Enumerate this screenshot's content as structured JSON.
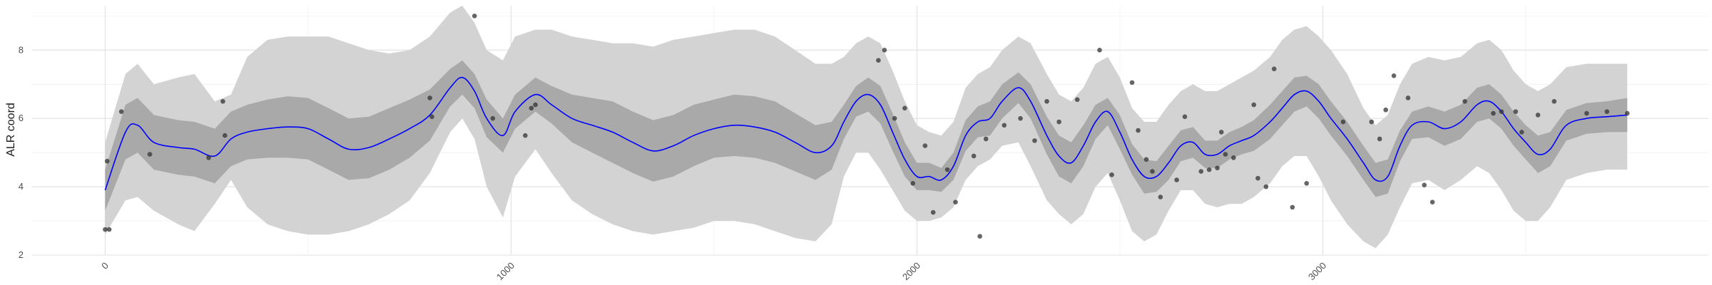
{
  "chart_data": {
    "type": "line",
    "title": "",
    "xlabel": "",
    "ylabel": "ALR coord",
    "xlim": [
      -180,
      3950
    ],
    "ylim": [
      2,
      9.3
    ],
    "x_ticks": [
      0,
      1000,
      2000,
      3000
    ],
    "x_tick_labels": [
      "0",
      "1000",
      "2000",
      "3000"
    ],
    "y_ticks": [
      2,
      4,
      6,
      8
    ],
    "y_tick_labels": [
      "2",
      "4",
      "6",
      "8"
    ],
    "grid": true,
    "legend": "none",
    "colors": {
      "mean_line": "#0000ff",
      "inner_band": "#a9a9a9",
      "outer_band": "#d3d3d3",
      "points": "#333333",
      "grid": "#ebebeb"
    },
    "series": [
      {
        "kind": "mean",
        "x": [
          0,
          50,
          80,
          120,
          180,
          220,
          270,
          310,
          350,
          400,
          450,
          500,
          550,
          600,
          650,
          700,
          750,
          800,
          850,
          880,
          910,
          940,
          980,
          1010,
          1060,
          1100,
          1150,
          1200,
          1250,
          1300,
          1350,
          1400,
          1450,
          1500,
          1550,
          1600,
          1650,
          1700,
          1750,
          1790,
          1820,
          1850,
          1880,
          1910,
          1940,
          1970,
          2000,
          2030,
          2060,
          2090,
          2120,
          2150,
          2180,
          2210,
          2250,
          2280,
          2320,
          2350,
          2380,
          2410,
          2440,
          2470,
          2500,
          2530,
          2560,
          2590,
          2620,
          2650,
          2680,
          2710,
          2740,
          2770,
          2800,
          2830,
          2870,
          2900,
          2930,
          2960,
          2990,
          3020,
          3060,
          3100,
          3130,
          3160,
          3190,
          3220,
          3260,
          3300,
          3340,
          3380,
          3410,
          3440,
          3470,
          3500,
          3530,
          3560,
          3600,
          3650,
          3700,
          3750
        ],
        "y": [
          3.9,
          5.6,
          5.8,
          5.3,
          5.15,
          5.1,
          4.9,
          5.4,
          5.6,
          5.7,
          5.75,
          5.7,
          5.4,
          5.1,
          5.15,
          5.4,
          5.7,
          6.1,
          6.9,
          7.2,
          6.8,
          6.0,
          5.5,
          6.2,
          6.7,
          6.4,
          6.0,
          5.8,
          5.6,
          5.3,
          5.05,
          5.2,
          5.5,
          5.7,
          5.8,
          5.75,
          5.6,
          5.3,
          5.0,
          5.2,
          5.9,
          6.5,
          6.7,
          6.4,
          5.6,
          4.8,
          4.3,
          4.3,
          4.2,
          4.6,
          5.5,
          5.9,
          6.0,
          6.5,
          6.9,
          6.5,
          5.5,
          4.9,
          4.7,
          5.2,
          5.9,
          6.2,
          5.6,
          4.8,
          4.3,
          4.3,
          4.7,
          5.2,
          5.3,
          4.95,
          4.95,
          5.2,
          5.35,
          5.5,
          5.9,
          6.3,
          6.7,
          6.8,
          6.5,
          6.0,
          5.4,
          4.7,
          4.2,
          4.3,
          5.2,
          5.8,
          5.9,
          5.7,
          5.9,
          6.4,
          6.5,
          6.2,
          5.7,
          5.3,
          4.95,
          5.1,
          5.8,
          6.0,
          6.05,
          6.1
        ]
      }
    ],
    "bands": [
      {
        "kind": "inner",
        "x": [
          0,
          50,
          80,
          120,
          180,
          220,
          270,
          310,
          350,
          400,
          450,
          500,
          550,
          600,
          650,
          700,
          750,
          800,
          850,
          880,
          910,
          940,
          980,
          1010,
          1060,
          1100,
          1150,
          1200,
          1250,
          1300,
          1350,
          1400,
          1450,
          1500,
          1550,
          1600,
          1650,
          1700,
          1750,
          1790,
          1820,
          1850,
          1880,
          1910,
          1940,
          1970,
          2000,
          2030,
          2060,
          2090,
          2120,
          2150,
          2180,
          2210,
          2250,
          2280,
          2320,
          2350,
          2380,
          2410,
          2440,
          2470,
          2500,
          2530,
          2560,
          2590,
          2620,
          2650,
          2680,
          2710,
          2740,
          2770,
          2800,
          2830,
          2870,
          2900,
          2930,
          2960,
          2990,
          3020,
          3060,
          3100,
          3130,
          3160,
          3190,
          3220,
          3260,
          3300,
          3340,
          3380,
          3410,
          3440,
          3470,
          3500,
          3530,
          3560,
          3600,
          3650,
          3700,
          3750
        ],
        "lower": [
          3.3,
          4.8,
          5.0,
          4.5,
          4.35,
          4.3,
          4.1,
          4.6,
          4.8,
          4.85,
          4.85,
          4.8,
          4.5,
          4.2,
          4.25,
          4.5,
          4.85,
          5.35,
          6.35,
          6.7,
          6.3,
          5.45,
          5.0,
          5.7,
          6.2,
          5.85,
          5.3,
          5.0,
          4.7,
          4.4,
          4.15,
          4.3,
          4.6,
          4.85,
          4.9,
          4.85,
          4.7,
          4.45,
          4.2,
          4.5,
          5.4,
          6.05,
          6.2,
          5.85,
          5.05,
          4.3,
          3.9,
          3.9,
          3.85,
          4.2,
          5.05,
          5.45,
          5.5,
          6.0,
          6.45,
          6.0,
          4.95,
          4.3,
          4.1,
          4.6,
          5.4,
          5.8,
          5.1,
          4.35,
          3.8,
          3.85,
          4.2,
          4.75,
          4.85,
          4.55,
          4.55,
          4.8,
          4.95,
          5.05,
          5.4,
          5.8,
          6.2,
          6.35,
          6.0,
          5.5,
          4.9,
          4.2,
          3.7,
          3.8,
          4.75,
          5.4,
          5.45,
          5.2,
          5.4,
          5.9,
          6.0,
          5.7,
          5.2,
          4.8,
          4.4,
          4.6,
          5.35,
          5.55,
          5.6,
          5.6
        ],
        "upper": [
          4.5,
          6.4,
          6.6,
          6.1,
          5.95,
          5.9,
          5.7,
          6.2,
          6.4,
          6.55,
          6.65,
          6.6,
          6.3,
          6.0,
          6.05,
          6.3,
          6.55,
          6.85,
          7.45,
          7.7,
          7.3,
          6.55,
          6.0,
          6.7,
          7.2,
          6.95,
          6.7,
          6.6,
          6.5,
          6.2,
          5.95,
          6.1,
          6.4,
          6.55,
          6.7,
          6.65,
          6.5,
          6.15,
          5.8,
          5.9,
          6.4,
          6.95,
          7.2,
          6.95,
          6.15,
          5.3,
          4.7,
          4.7,
          4.55,
          5.0,
          5.95,
          6.35,
          6.5,
          7.0,
          7.35,
          7.0,
          6.05,
          5.5,
          5.3,
          5.8,
          6.4,
          6.6,
          6.1,
          5.25,
          4.8,
          4.75,
          5.2,
          5.65,
          5.75,
          5.35,
          5.35,
          5.6,
          5.75,
          5.95,
          6.4,
          6.8,
          7.2,
          7.25,
          7.0,
          6.5,
          5.9,
          5.2,
          4.7,
          4.8,
          5.65,
          6.2,
          6.35,
          6.2,
          6.4,
          6.9,
          7.0,
          6.7,
          6.2,
          5.8,
          5.5,
          5.6,
          6.25,
          6.45,
          6.5,
          6.6
        ]
      },
      {
        "kind": "outer",
        "x": [
          0,
          50,
          80,
          120,
          180,
          220,
          270,
          310,
          350,
          400,
          450,
          500,
          550,
          600,
          650,
          700,
          750,
          800,
          850,
          880,
          910,
          940,
          980,
          1010,
          1060,
          1100,
          1150,
          1200,
          1250,
          1300,
          1350,
          1400,
          1450,
          1500,
          1550,
          1600,
          1650,
          1700,
          1750,
          1790,
          1820,
          1850,
          1880,
          1910,
          1940,
          1970,
          2000,
          2030,
          2060,
          2090,
          2120,
          2150,
          2180,
          2210,
          2250,
          2280,
          2320,
          2350,
          2380,
          2410,
          2440,
          2470,
          2500,
          2530,
          2560,
          2590,
          2620,
          2650,
          2680,
          2710,
          2740,
          2770,
          2800,
          2830,
          2870,
          2900,
          2930,
          2960,
          2990,
          3020,
          3060,
          3100,
          3130,
          3160,
          3190,
          3220,
          3260,
          3300,
          3340,
          3380,
          3410,
          3440,
          3470,
          3500,
          3530,
          3560,
          3600,
          3650,
          3700,
          3750
        ],
        "lower": [
          2.6,
          3.6,
          3.7,
          3.3,
          2.9,
          2.7,
          3.5,
          4.2,
          3.4,
          2.9,
          2.7,
          2.6,
          2.6,
          2.7,
          2.9,
          3.2,
          3.6,
          4.4,
          5.6,
          6.0,
          5.4,
          4.0,
          3.1,
          4.3,
          5.1,
          4.4,
          3.6,
          3.2,
          2.9,
          2.7,
          2.6,
          2.7,
          2.8,
          3.0,
          3.0,
          2.9,
          2.7,
          2.5,
          2.4,
          2.9,
          4.3,
          5.0,
          5.0,
          4.5,
          3.9,
          3.3,
          3.0,
          3.0,
          3.1,
          3.4,
          4.2,
          4.6,
          4.8,
          5.2,
          5.3,
          4.6,
          3.6,
          3.2,
          2.9,
          3.2,
          4.0,
          4.4,
          3.6,
          2.7,
          2.4,
          2.6,
          3.3,
          3.9,
          3.9,
          3.5,
          3.4,
          3.5,
          3.5,
          3.7,
          4.1,
          4.6,
          4.9,
          4.9,
          4.3,
          3.6,
          2.9,
          2.4,
          2.2,
          2.6,
          3.4,
          4.1,
          4.2,
          3.9,
          4.2,
          4.6,
          4.4,
          3.9,
          3.3,
          3.0,
          3.0,
          3.4,
          4.2,
          4.4,
          4.5,
          4.5
        ],
        "upper": [
          5.3,
          7.3,
          7.6,
          7.0,
          7.2,
          7.3,
          6.5,
          6.7,
          7.8,
          8.3,
          8.4,
          8.4,
          8.4,
          8.2,
          8.0,
          7.9,
          8.0,
          8.4,
          9.1,
          9.3,
          8.8,
          8.0,
          7.7,
          8.4,
          8.6,
          8.6,
          8.4,
          8.3,
          8.2,
          8.2,
          8.1,
          8.3,
          8.4,
          8.5,
          8.6,
          8.6,
          8.4,
          8.0,
          7.6,
          7.6,
          7.8,
          8.2,
          8.4,
          8.2,
          7.4,
          6.5,
          5.8,
          5.6,
          5.5,
          5.9,
          6.9,
          7.3,
          7.5,
          8.0,
          8.4,
          8.2,
          7.3,
          6.7,
          6.5,
          6.9,
          7.6,
          7.8,
          7.2,
          6.3,
          5.9,
          5.9,
          6.4,
          6.8,
          7.0,
          6.8,
          6.8,
          7.0,
          7.2,
          7.4,
          7.8,
          8.3,
          8.6,
          8.7,
          8.4,
          8.0,
          7.3,
          6.3,
          5.8,
          6.1,
          7.0,
          7.6,
          7.8,
          7.7,
          7.8,
          8.2,
          8.3,
          8.0,
          7.4,
          7.0,
          6.8,
          7.0,
          7.5,
          7.6,
          7.6,
          7.6
        ]
      }
    ],
    "points": {
      "x": [
        0,
        5,
        10,
        40,
        110,
        255,
        290,
        295,
        800,
        805,
        910,
        955,
        1035,
        1050,
        1060,
        1905,
        1920,
        1945,
        1970,
        1990,
        2020,
        2040,
        2075,
        2095,
        2140,
        2155,
        2170,
        2215,
        2255,
        2290,
        2320,
        2350,
        2395,
        2450,
        2480,
        2530,
        2545,
        2565,
        2580,
        2600,
        2640,
        2660,
        2700,
        2720,
        2740,
        2750,
        2760,
        2780,
        2830,
        2840,
        2860,
        2880,
        2925,
        2960,
        3050,
        3120,
        3140,
        3155,
        3175,
        3210,
        3250,
        3270,
        3350,
        3420,
        3440,
        3475,
        3490,
        3530,
        3570,
        3650,
        3700,
        3750
      ],
      "y": [
        2.75,
        4.75,
        2.75,
        6.2,
        4.95,
        4.85,
        6.5,
        5.5,
        6.6,
        6.05,
        9.0,
        6.0,
        5.5,
        6.3,
        6.4,
        7.7,
        8.0,
        6.0,
        6.3,
        4.1,
        5.2,
        3.25,
        4.5,
        3.55,
        4.9,
        2.55,
        5.4,
        5.8,
        6.0,
        5.35,
        6.5,
        5.9,
        6.55,
        8.0,
        4.35,
        7.05,
        5.65,
        4.8,
        4.45,
        3.7,
        4.2,
        6.05,
        4.45,
        4.5,
        4.55,
        5.6,
        4.95,
        4.85,
        6.4,
        4.25,
        4.0,
        7.45,
        3.4,
        4.1,
        5.9,
        5.9,
        5.4,
        6.25,
        7.25,
        6.6,
        4.05,
        3.55,
        6.5,
        6.15,
        6.2,
        6.2,
        5.6,
        6.1,
        6.5,
        6.15,
        6.2,
        6.15
      ]
    }
  }
}
